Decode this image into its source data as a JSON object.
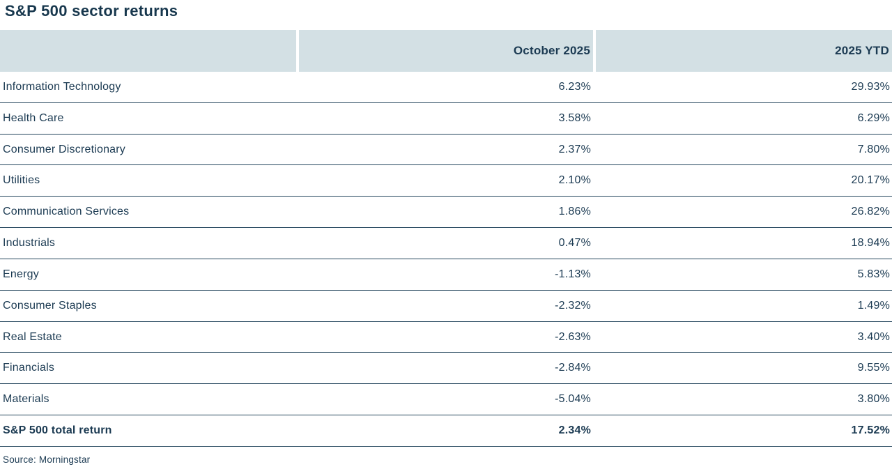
{
  "title": "S&P 500 sector returns",
  "table": {
    "columns": [
      "",
      "October 2025",
      "2025 YTD"
    ],
    "rows": [
      {
        "name": "Information Technology",
        "october": "6.23%",
        "ytd": "29.93%"
      },
      {
        "name": "Health Care",
        "october": "3.58%",
        "ytd": "6.29%"
      },
      {
        "name": "Consumer Discretionary",
        "october": "2.37%",
        "ytd": "7.80%"
      },
      {
        "name": "Utilities",
        "october": "2.10%",
        "ytd": "20.17%"
      },
      {
        "name": "Communication Services",
        "october": "1.86%",
        "ytd": "26.82%"
      },
      {
        "name": "Industrials",
        "october": "0.47%",
        "ytd": "18.94%"
      },
      {
        "name": "Energy",
        "october": "-1.13%",
        "ytd": "5.83%"
      },
      {
        "name": "Consumer Staples",
        "october": "-2.32%",
        "ytd": "1.49%"
      },
      {
        "name": "Real Estate",
        "october": "-2.63%",
        "ytd": "3.40%"
      },
      {
        "name": "Financials",
        "october": "-2.84%",
        "ytd": "9.55%"
      },
      {
        "name": "Materials",
        "october": "-5.04%",
        "ytd": "3.80%"
      }
    ],
    "total": {
      "name": "S&P 500 total return",
      "october": "2.34%",
      "ytd": "17.52%"
    }
  },
  "source": "Source: Morningstar",
  "colors": {
    "text_navy": "#1b3a52",
    "header_bg": "#d3e0e4",
    "row_line": "#24455c"
  },
  "chart_data": {
    "type": "table",
    "title": "S&P 500 sector returns",
    "categories": [
      "Information Technology",
      "Health Care",
      "Consumer Discretionary",
      "Utilities",
      "Communication Services",
      "Industrials",
      "Energy",
      "Consumer Staples",
      "Real Estate",
      "Financials",
      "Materials",
      "S&P 500 total return"
    ],
    "series": [
      {
        "name": "October 2025",
        "values": [
          6.23,
          3.58,
          2.37,
          2.1,
          1.86,
          0.47,
          -1.13,
          -2.32,
          -2.63,
          -2.84,
          -5.04,
          2.34
        ]
      },
      {
        "name": "2025 YTD",
        "values": [
          29.93,
          6.29,
          7.8,
          20.17,
          26.82,
          18.94,
          5.83,
          1.49,
          3.4,
          9.55,
          3.8,
          17.52
        ]
      }
    ],
    "unit": "%",
    "source": "Morningstar"
  }
}
